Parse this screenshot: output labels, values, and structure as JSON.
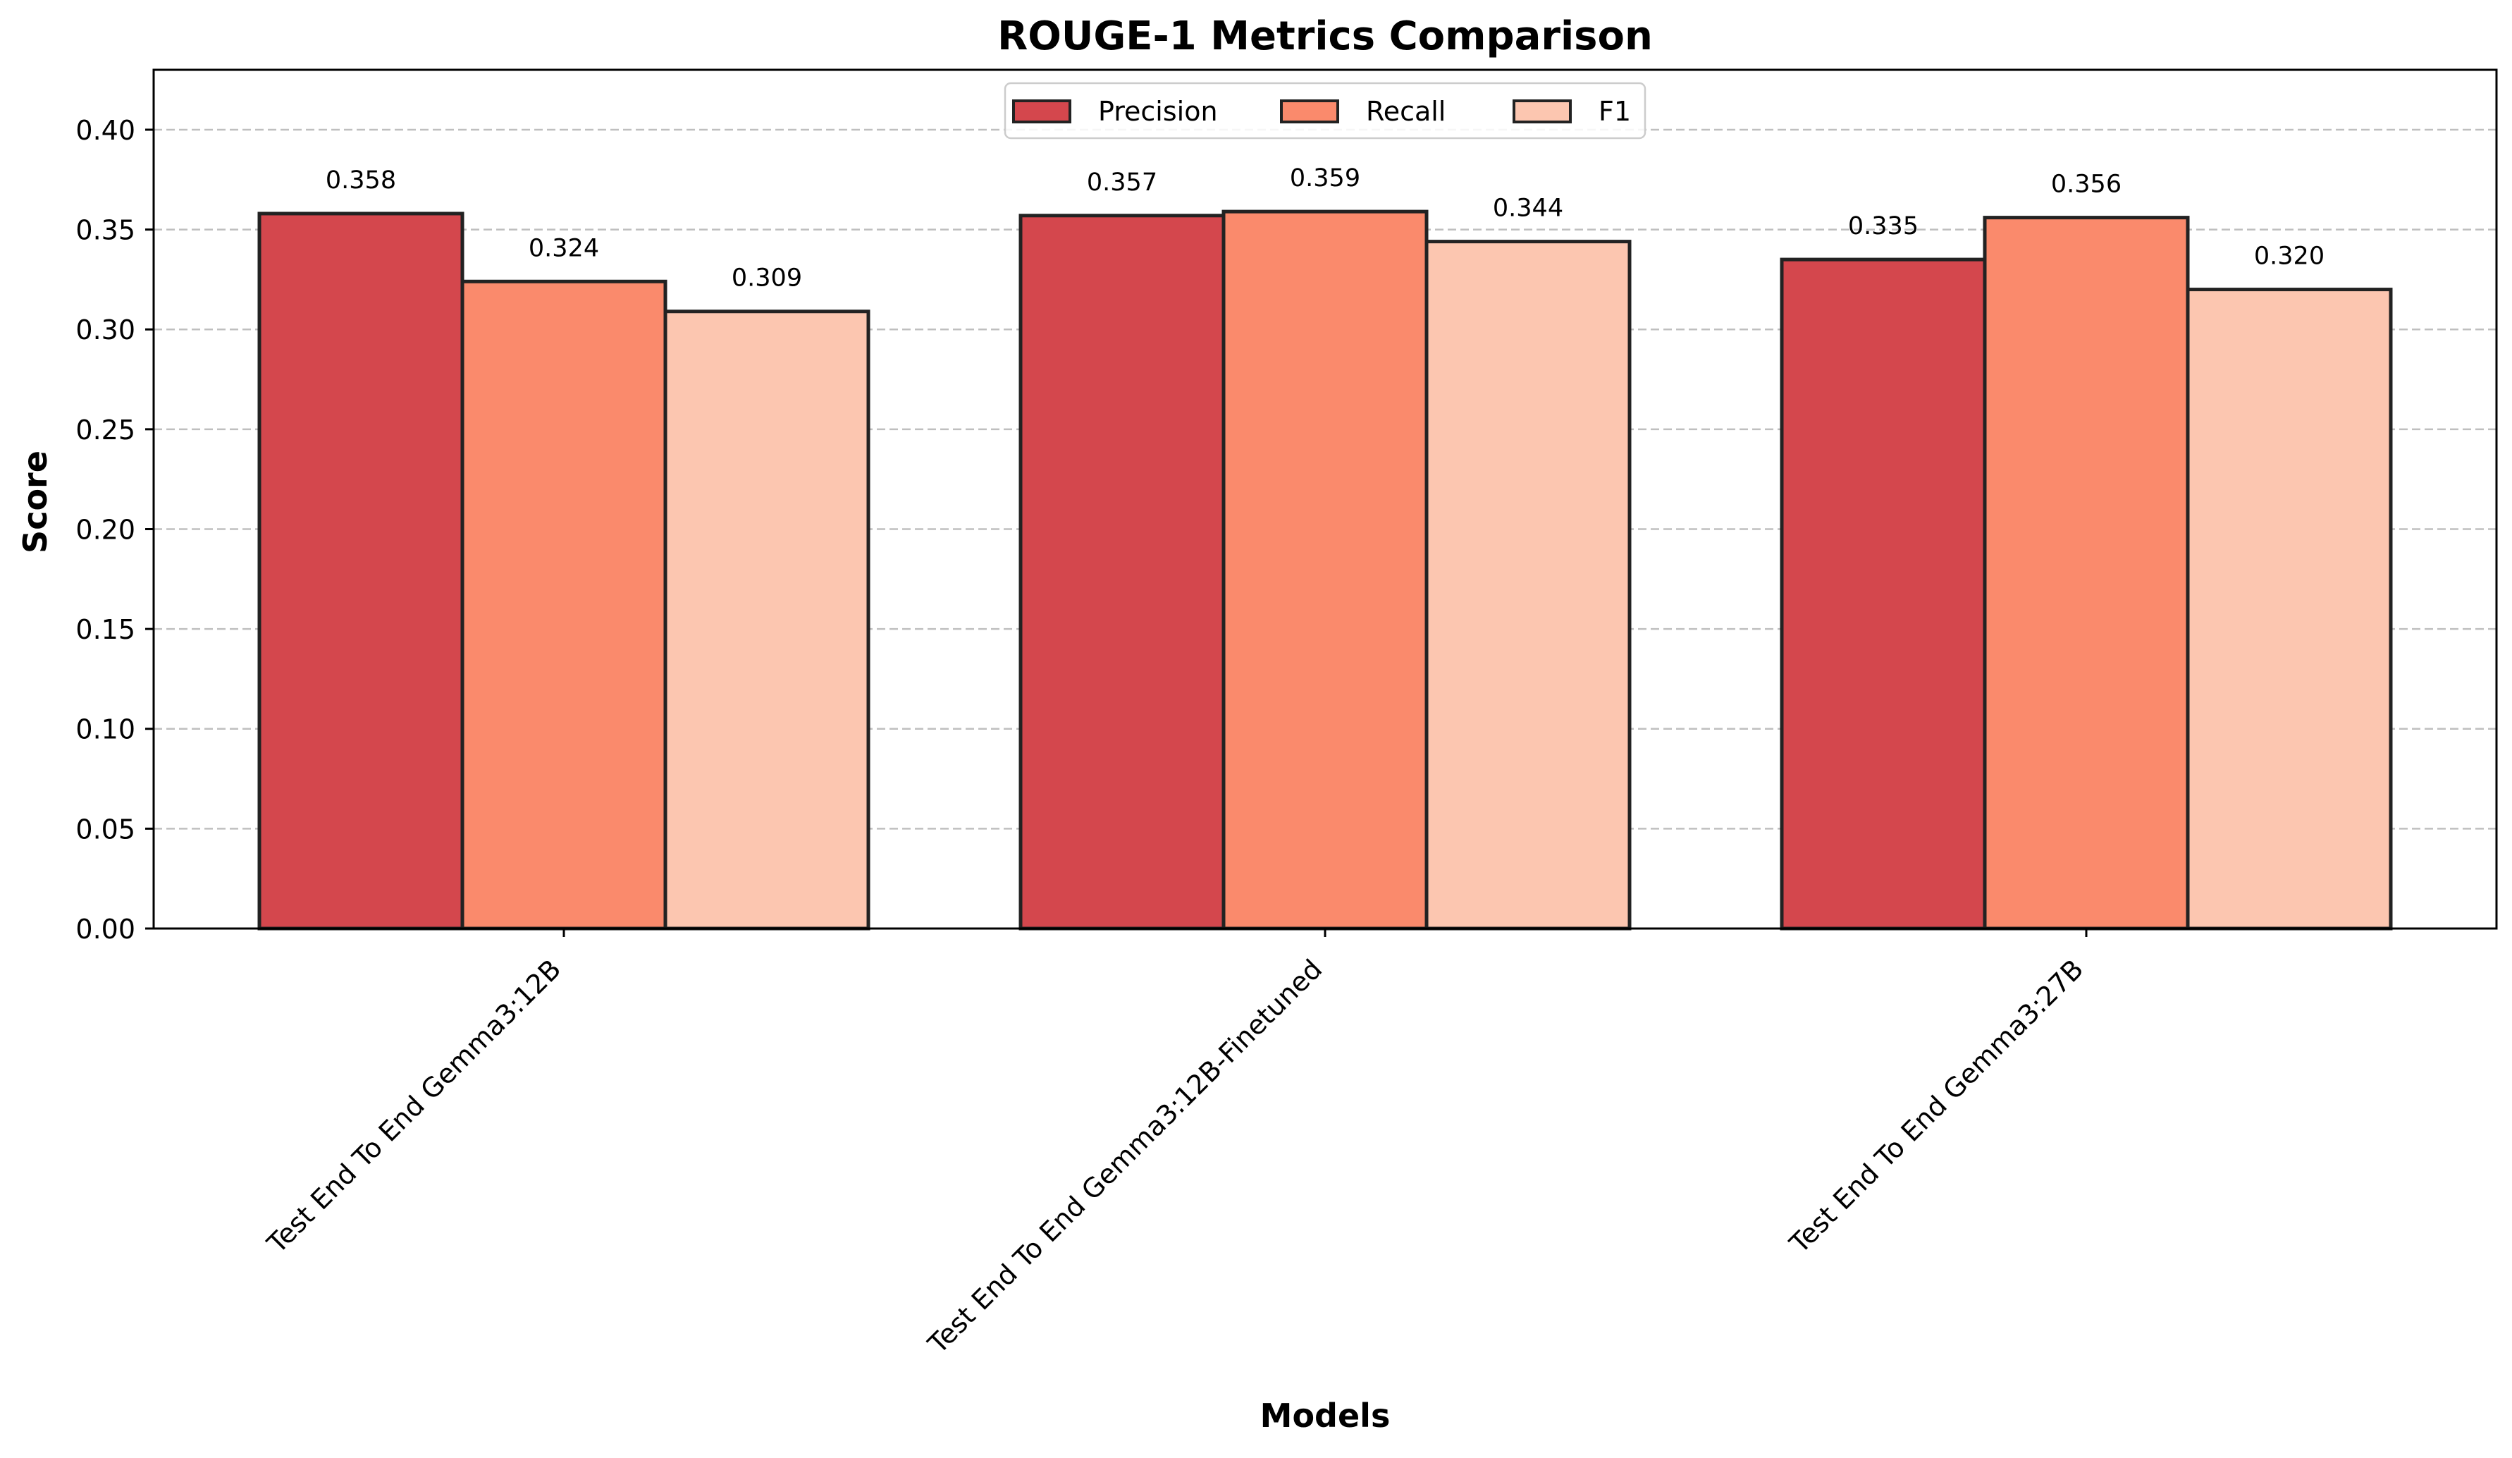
{
  "chart_data": {
    "type": "bar",
    "title": "ROUGE-1 Metrics Comparison",
    "xlabel": "Models",
    "ylabel": "Score",
    "categories": [
      "Test End To End Gemma3:12B",
      "Test End To End Gemma3:12B-Finetuned",
      "Test End To End Gemma3:27B"
    ],
    "series": [
      {
        "name": "Precision",
        "values": [
          0.358,
          0.357,
          0.335
        ],
        "color": "#d4474d"
      },
      {
        "name": "Recall",
        "values": [
          0.324,
          0.359,
          0.356
        ],
        "color": "#fa8a6c"
      },
      {
        "name": "F1",
        "values": [
          0.309,
          0.344,
          0.32
        ],
        "color": "#fcc6b0"
      }
    ],
    "data_labels": [
      [
        "0.358",
        "0.357",
        "0.335"
      ],
      [
        "0.324",
        "0.359",
        "0.356"
      ],
      [
        "0.309",
        "0.344",
        "0.320"
      ]
    ],
    "ylim": [
      0,
      0.43
    ],
    "yticks": [
      "0.00",
      "0.05",
      "0.10",
      "0.15",
      "0.20",
      "0.25",
      "0.30",
      "0.35",
      "0.40"
    ],
    "ytick_values": [
      0,
      0.05,
      0.1,
      0.15,
      0.2,
      0.25,
      0.3,
      0.35,
      0.4
    ],
    "grid": "y, dashed",
    "legend_position": "top-center",
    "bar_edge_color": "#222222"
  }
}
